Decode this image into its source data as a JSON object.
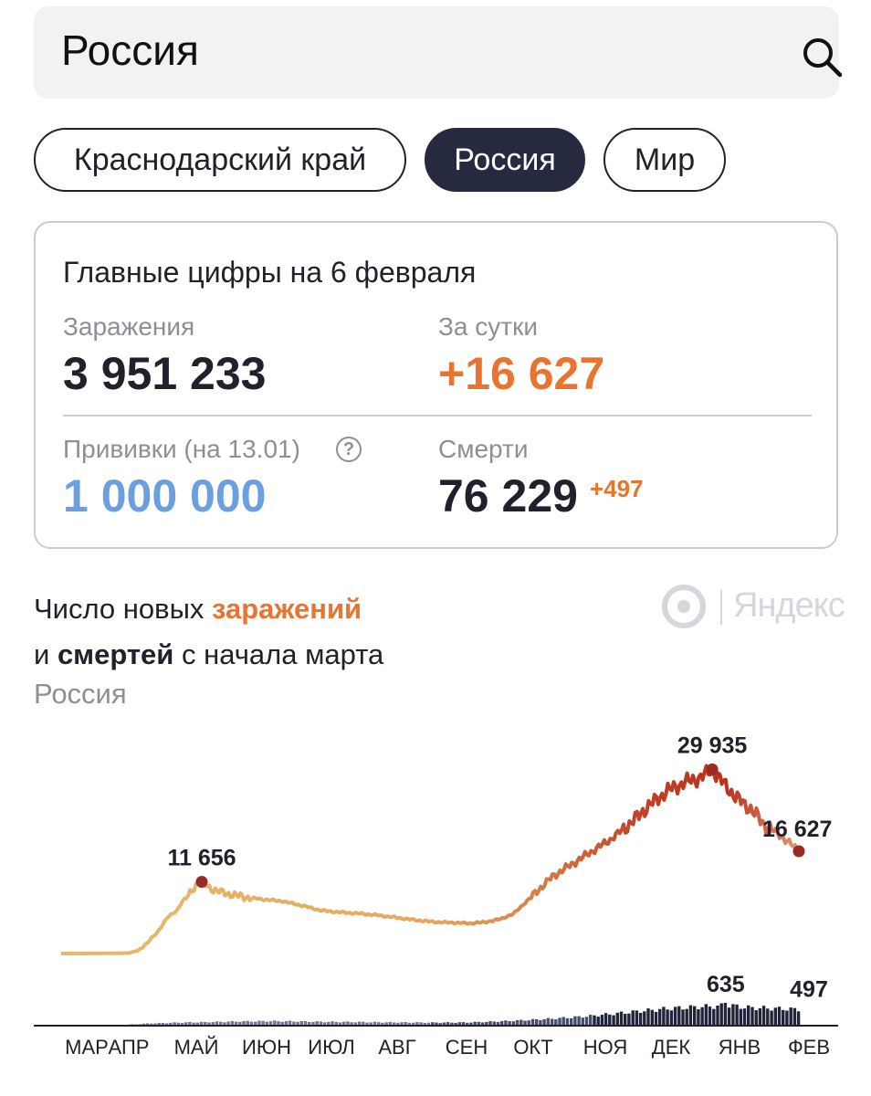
{
  "search": {
    "value": "Россия"
  },
  "chips": [
    "Краснодарский край",
    "Россия",
    "Мир"
  ],
  "summary": {
    "title": "Главные цифры на 6 февраля",
    "infections_label": "Заражения",
    "infections_value": "3 951 233",
    "daily_label": "За сутки",
    "daily_value": "+16 627",
    "vaccinations_label": "Прививки (на 13.01)",
    "vaccinations_help": "?",
    "vaccinations_value": "1 000 000",
    "deaths_label": "Смерти",
    "deaths_value": "76 229",
    "deaths_delta": "+497"
  },
  "chart_heading": {
    "line1_prefix": "Число новых ",
    "line1_highlight": "заражений",
    "line2_prefix": "и ",
    "line2_bold": "смертей",
    "line2_suffix": " с начала марта",
    "region": "Россия"
  },
  "logo_text": "Яндекс",
  "colors": {
    "accent_orange": "#e8742f",
    "vaccination_blue": "#6c9fe0",
    "chip_active": "#262a40",
    "line_low": "#e9b86c",
    "line_high": "#b8321c",
    "death_bars": "#2f3550"
  },
  "chart_data": {
    "type": "line",
    "title": "Число новых заражений и смертей с начала марта",
    "xlabel": "",
    "ylabel": "",
    "months": [
      "МАР",
      "АПР",
      "МАЙ",
      "ИЮН",
      "ИЮЛ",
      "АВГ",
      "СЕН",
      "ОКТ",
      "НОЯ",
      "ДЕК",
      "ЯНВ",
      "ФЕВ"
    ],
    "series": [
      {
        "key": "infections",
        "points": [
          [
            0,
            0
          ],
          [
            20,
            10
          ],
          [
            35,
            80
          ],
          [
            40,
            500
          ],
          [
            45,
            1800
          ],
          [
            50,
            3500
          ],
          [
            55,
            5800
          ],
          [
            60,
            7000
          ],
          [
            63,
            8500
          ],
          [
            66,
            9400
          ],
          [
            70,
            11200
          ],
          [
            73,
            11656
          ],
          [
            78,
            10500
          ],
          [
            85,
            9800
          ],
          [
            95,
            9200
          ],
          [
            105,
            8800
          ],
          [
            115,
            8500
          ],
          [
            125,
            7800
          ],
          [
            135,
            7000
          ],
          [
            145,
            6700
          ],
          [
            155,
            6500
          ],
          [
            165,
            6200
          ],
          [
            175,
            5800
          ],
          [
            185,
            5400
          ],
          [
            195,
            5100
          ],
          [
            205,
            5000
          ],
          [
            212,
            4900
          ],
          [
            220,
            5100
          ],
          [
            228,
            5600
          ],
          [
            235,
            6500
          ],
          [
            245,
            9500
          ],
          [
            255,
            12500
          ],
          [
            265,
            14500
          ],
          [
            275,
            16500
          ],
          [
            285,
            18500
          ],
          [
            295,
            21000
          ],
          [
            305,
            24000
          ],
          [
            315,
            26500
          ],
          [
            325,
            28000
          ],
          [
            332,
            28600
          ],
          [
            338,
            29935
          ],
          [
            343,
            28000
          ],
          [
            350,
            25500
          ],
          [
            358,
            23500
          ],
          [
            365,
            21000
          ],
          [
            372,
            19500
          ],
          [
            378,
            18000
          ],
          [
            383,
            16627
          ]
        ],
        "labels": [
          {
            "value": "11 656",
            "x": 73
          },
          {
            "value": "29 935",
            "x": 338
          },
          {
            "value": "16 627",
            "x": 383
          }
        ]
      },
      {
        "key": "deaths",
        "points": [
          [
            0,
            1
          ],
          [
            20,
            5
          ],
          [
            30,
            20
          ],
          [
            45,
            70
          ],
          [
            60,
            95
          ],
          [
            75,
            110
          ],
          [
            90,
            130
          ],
          [
            105,
            140
          ],
          [
            120,
            135
          ],
          [
            135,
            120
          ],
          [
            150,
            115
          ],
          [
            165,
            105
          ],
          [
            180,
            100
          ],
          [
            195,
            95
          ],
          [
            210,
            100
          ],
          [
            225,
            130
          ],
          [
            240,
            170
          ],
          [
            255,
            220
          ],
          [
            270,
            280
          ],
          [
            285,
            360
          ],
          [
            300,
            450
          ],
          [
            315,
            530
          ],
          [
            330,
            580
          ],
          [
            340,
            600
          ],
          [
            345,
            635
          ],
          [
            355,
            560
          ],
          [
            365,
            540
          ],
          [
            375,
            520
          ],
          [
            383,
            497
          ]
        ],
        "labels": [
          {
            "value": "635",
            "x": 345
          },
          {
            "value": "497",
            "x": 383
          }
        ]
      }
    ],
    "ylim_infections": [
      0,
      30000
    ],
    "ylim_deaths": [
      0,
      800
    ],
    "xlim_days": [
      0,
      383
    ],
    "grid": false,
    "legend": "none"
  }
}
